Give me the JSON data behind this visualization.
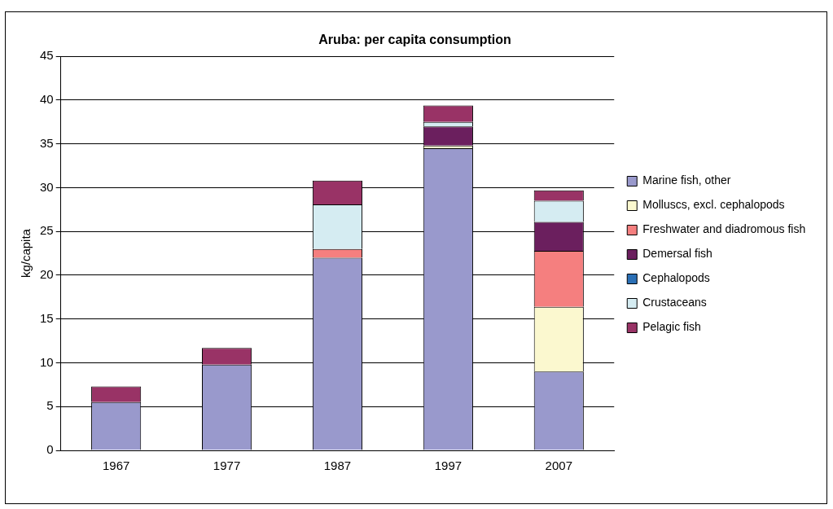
{
  "chart_data": {
    "type": "bar",
    "title": "Aruba: per capita consumption",
    "ylabel": "kg/capita",
    "categories": [
      "1967",
      "1977",
      "1987",
      "1997",
      "2007"
    ],
    "stacked": true,
    "ylim": [
      0,
      45
    ],
    "yticks": [
      0,
      5,
      10,
      15,
      20,
      25,
      30,
      35,
      40,
      45
    ],
    "grid": "y",
    "legend": "right",
    "series": [
      {
        "name": "Marine fish, other",
        "color": "#9999cc",
        "values": [
          5.5,
          9.8,
          22.0,
          34.5,
          9.0
        ]
      },
      {
        "name": "Molluscs, excl. cephalopods",
        "color": "#fbf8cf",
        "values": [
          0,
          0,
          0,
          0.3,
          7.4
        ]
      },
      {
        "name": "Freshwater and diadromous fish",
        "color": "#f57f7f",
        "values": [
          0,
          0,
          1.0,
          0,
          6.4
        ]
      },
      {
        "name": "Demersal fish",
        "color": "#6b1f5e",
        "values": [
          0,
          0,
          0,
          2.2,
          3.3
        ]
      },
      {
        "name": "Cephalopods",
        "color": "#2a6fb5",
        "values": [
          0,
          0,
          0,
          0,
          0
        ]
      },
      {
        "name": "Crustaceans",
        "color": "#d5ecf2",
        "values": [
          0,
          0,
          5.1,
          0.5,
          2.4
        ]
      },
      {
        "name": "Pelagic fish",
        "color": "#993366",
        "values": [
          1.8,
          1.9,
          2.7,
          1.9,
          1.2
        ]
      }
    ]
  }
}
